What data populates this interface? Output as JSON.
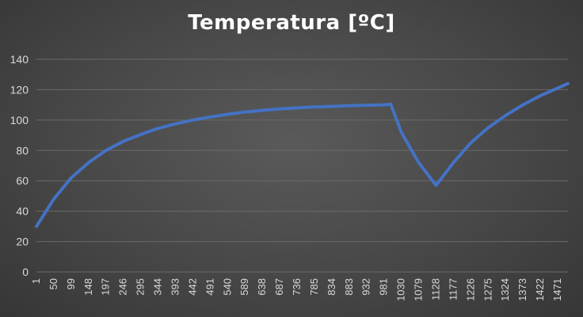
{
  "chart_data": {
    "type": "line",
    "title": "Temperatura [ºC]",
    "xlabel": "",
    "ylabel": "",
    "ylim": [
      0,
      140
    ],
    "y_ticks": [
      0,
      20,
      40,
      60,
      80,
      100,
      120,
      140
    ],
    "x_tick_labels": [
      "1",
      "50",
      "99",
      "148",
      "197",
      "246",
      "295",
      "344",
      "393",
      "442",
      "491",
      "540",
      "589",
      "638",
      "687",
      "736",
      "785",
      "834",
      "883",
      "932",
      "981",
      "1030",
      "1079",
      "1128",
      "1177",
      "1226",
      "1275",
      "1324",
      "1373",
      "1422",
      "1471"
    ],
    "grid": true,
    "legend": "none",
    "series": [
      {
        "color": "#4472c4",
        "x": [
          1,
          50,
          99,
          148,
          197,
          246,
          295,
          344,
          393,
          442,
          491,
          540,
          589,
          638,
          687,
          736,
          785,
          834,
          883,
          932,
          981,
          1000,
          1030,
          1079,
          1128,
          1177,
          1226,
          1275,
          1324,
          1373,
          1422,
          1471,
          1500
        ],
        "y": [
          30,
          48,
          62,
          72,
          80,
          86,
          90.5,
          94.5,
          97.5,
          100,
          102,
          103.8,
          105.3,
          106.4,
          107.3,
          108,
          108.6,
          109,
          109.4,
          109.7,
          110,
          110.5,
          92,
          72,
          57,
          72,
          85,
          95,
          103,
          110,
          116,
          121,
          124
        ]
      }
    ]
  }
}
